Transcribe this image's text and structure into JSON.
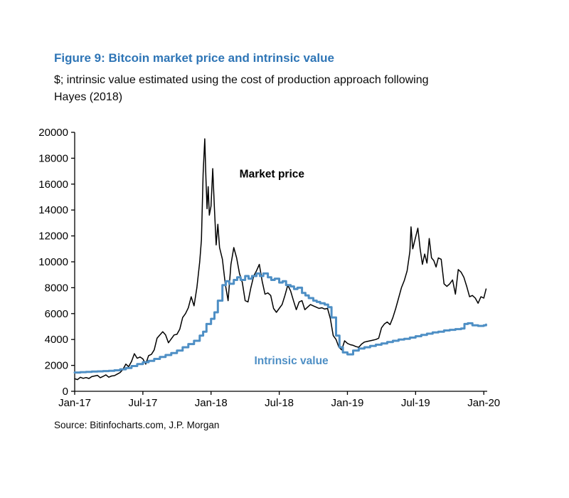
{
  "header": {
    "title": "Figure 9: Bitcoin market price and intrinsic value",
    "subtitle_line1": "$; intrinsic value estimated using the cost of production approach following",
    "subtitle_line2": "Hayes (2018)"
  },
  "footer": {
    "source": "Source: Bitinfocharts.com, J.P. Morgan"
  },
  "colors": {
    "title_blue": "#2e75b6",
    "intrinsic_blue": "#4e8fc5",
    "market_black": "#000000",
    "axis_black": "#000000"
  },
  "chart_data": {
    "type": "line",
    "title": "Figure 9: Bitcoin market price and intrinsic value",
    "subtitle": "$; intrinsic value estimated using the cost of production approach following Hayes (2018)",
    "xlabel": "",
    "ylabel": "$",
    "grid": false,
    "legend_position": "inline-annotations",
    "ylim": [
      0,
      20000
    ],
    "y_ticks": [
      0,
      2000,
      4000,
      6000,
      8000,
      10000,
      12000,
      14000,
      16000,
      18000,
      20000
    ],
    "x_range": [
      0,
      36.3
    ],
    "x_unit": "months since Jan-2017",
    "x_ticks": [
      {
        "pos": 0,
        "label": "Jan-17"
      },
      {
        "pos": 6,
        "label": "Jul-17"
      },
      {
        "pos": 12,
        "label": "Jan-18"
      },
      {
        "pos": 18,
        "label": "Jul-18"
      },
      {
        "pos": 24,
        "label": "Jan-19"
      },
      {
        "pos": 30,
        "label": "Jul-19"
      },
      {
        "pos": 36,
        "label": "Jan-20"
      }
    ],
    "axis_color": "#000000",
    "annotations": [
      {
        "text": "Market price",
        "color": "#000000",
        "x": 14.5,
        "y": 16500,
        "bold": true
      },
      {
        "text": "Intrinsic value",
        "color": "#4e8fc5",
        "x": 15.8,
        "y": 2100,
        "bold": true
      }
    ],
    "series": [
      {
        "name": "Market price",
        "color": "#000000",
        "width": 1.5,
        "step": false,
        "x": [
          0,
          0.25,
          0.5,
          0.75,
          1,
          1.25,
          1.5,
          1.75,
          2,
          2.25,
          2.5,
          2.75,
          3,
          3.25,
          3.5,
          3.75,
          4,
          4.25,
          4.5,
          4.75,
          5,
          5.25,
          5.5,
          5.75,
          6,
          6.25,
          6.5,
          6.75,
          7,
          7.25,
          7.5,
          7.75,
          8,
          8.25,
          8.5,
          8.75,
          9,
          9.25,
          9.5,
          9.75,
          10,
          10.25,
          10.5,
          10.75,
          11,
          11.15,
          11.3,
          11.45,
          11.55,
          11.65,
          11.75,
          11.85,
          12,
          12.15,
          12.3,
          12.45,
          12.6,
          12.75,
          13,
          13.25,
          13.5,
          13.75,
          14,
          14.25,
          14.5,
          14.75,
          15,
          15.25,
          15.5,
          15.75,
          16,
          16.25,
          16.5,
          16.75,
          17,
          17.25,
          17.5,
          17.75,
          18,
          18.25,
          18.5,
          18.75,
          19,
          19.25,
          19.5,
          19.75,
          20,
          20.25,
          20.5,
          20.75,
          21,
          21.25,
          21.5,
          21.75,
          22,
          22.25,
          22.5,
          22.75,
          23,
          23.25,
          23.5,
          23.75,
          24,
          24.25,
          24.5,
          24.75,
          25,
          25.25,
          25.5,
          25.75,
          26,
          26.25,
          26.5,
          26.75,
          27,
          27.25,
          27.5,
          27.75,
          28,
          28.25,
          28.5,
          28.75,
          29,
          29.25,
          29.5,
          29.6,
          29.75,
          30,
          30.2,
          30.4,
          30.6,
          30.8,
          31,
          31.2,
          31.4,
          31.6,
          31.8,
          32,
          32.25,
          32.5,
          32.75,
          33,
          33.25,
          33.5,
          33.75,
          34,
          34.25,
          34.5,
          34.75,
          35,
          35.25,
          35.5,
          35.75,
          36,
          36.2
        ],
        "y": [
          970,
          900,
          1080,
          1000,
          1060,
          990,
          1130,
          1180,
          1230,
          1050,
          1150,
          1270,
          1090,
          1180,
          1210,
          1330,
          1450,
          1700,
          2100,
          1900,
          2300,
          2900,
          2550,
          2650,
          2500,
          2100,
          2750,
          2850,
          3200,
          4100,
          4350,
          4600,
          4350,
          3750,
          4050,
          4350,
          4400,
          4800,
          5700,
          6000,
          6450,
          7300,
          6600,
          8000,
          10000,
          11700,
          16800,
          19500,
          16500,
          14100,
          15800,
          13600,
          14300,
          17200,
          14100,
          11300,
          12900,
          11100,
          10200,
          8300,
          7000,
          9800,
          11100,
          10300,
          9100,
          8400,
          7000,
          6900,
          8000,
          8900,
          9300,
          9800,
          8500,
          7500,
          7600,
          7400,
          6400,
          6100,
          6400,
          6700,
          7400,
          8200,
          7750,
          7000,
          6300,
          6900,
          7000,
          6300,
          6500,
          6700,
          6600,
          6500,
          6400,
          6450,
          6350,
          6400,
          5600,
          4300,
          4000,
          3400,
          3200,
          3900,
          3700,
          3600,
          3550,
          3450,
          3400,
          3650,
          3800,
          3850,
          3900,
          3950,
          4000,
          4100,
          4900,
          5200,
          5350,
          5150,
          5700,
          6400,
          7200,
          8000,
          8550,
          9300,
          10800,
          12700,
          11000,
          11900,
          12600,
          11000,
          9800,
          10600,
          9900,
          11800,
          10300,
          10100,
          9600,
          10300,
          10200,
          8300,
          8100,
          8300,
          8600,
          7500,
          9400,
          9200,
          8800,
          8100,
          7300,
          7400,
          7200,
          6800,
          7300,
          7200,
          7900
        ]
      },
      {
        "name": "Intrinsic value",
        "color": "#4e8fc5",
        "width": 3,
        "step": true,
        "x": [
          0,
          0.5,
          1,
          1.5,
          2,
          2.5,
          3,
          3.5,
          4,
          4.5,
          5,
          5.5,
          6,
          6.5,
          7,
          7.5,
          8,
          8.5,
          9,
          9.5,
          10,
          10.5,
          11,
          11.3,
          11.6,
          12,
          12.3,
          12.6,
          13,
          13.3,
          13.6,
          14,
          14.3,
          14.6,
          15,
          15.3,
          15.6,
          16,
          16.3,
          16.6,
          17,
          17.3,
          17.6,
          18,
          18.3,
          18.6,
          19,
          19.3,
          19.6,
          20,
          20.3,
          20.6,
          21,
          21.3,
          21.6,
          22,
          22.3,
          22.6,
          23,
          23.3,
          23.6,
          24,
          24.5,
          25,
          25.5,
          26,
          26.5,
          27,
          27.5,
          28,
          28.5,
          29,
          29.5,
          30,
          30.5,
          31,
          31.5,
          32,
          32.5,
          33,
          33.5,
          34,
          34.3,
          34.6,
          35,
          35.5,
          36,
          36.2
        ],
        "y": [
          1450,
          1480,
          1500,
          1520,
          1540,
          1560,
          1580,
          1620,
          1700,
          1800,
          1950,
          2100,
          2250,
          2350,
          2500,
          2650,
          2800,
          2950,
          3150,
          3400,
          3650,
          3900,
          4300,
          4600,
          5200,
          5600,
          6100,
          7000,
          8200,
          8500,
          8300,
          8600,
          8800,
          8600,
          8900,
          8700,
          8900,
          9100,
          8900,
          9100,
          8800,
          8600,
          8700,
          8400,
          8500,
          8200,
          8100,
          7900,
          8000,
          7600,
          7400,
          7200,
          7000,
          6900,
          6800,
          6700,
          6500,
          5700,
          4300,
          3400,
          3000,
          2850,
          3150,
          3300,
          3400,
          3500,
          3600,
          3700,
          3800,
          3900,
          4000,
          4050,
          4150,
          4250,
          4350,
          4450,
          4550,
          4600,
          4700,
          4750,
          4800,
          4850,
          5200,
          5250,
          5100,
          5050,
          5100,
          5150
        ]
      }
    ]
  }
}
